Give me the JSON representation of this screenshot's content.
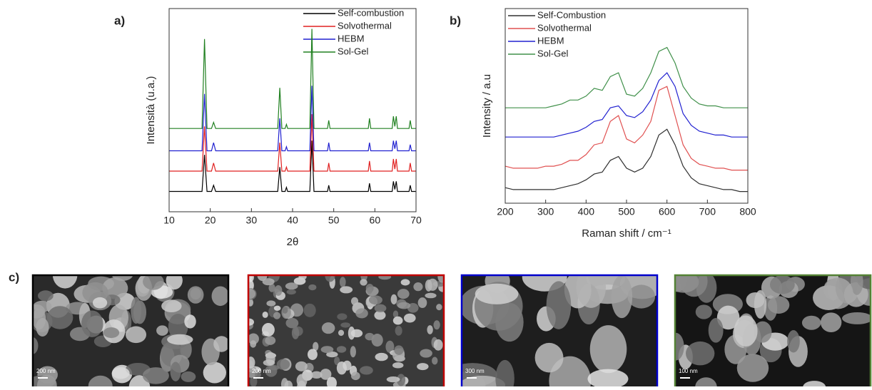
{
  "chart_data": [
    {
      "type": "line",
      "panel_label": "a)",
      "y_label": "Intensità (u.a.)",
      "x_label": "2θ",
      "x": [
        10,
        18.0,
        18.6,
        19.2,
        20.3,
        20.8,
        21.3,
        36.4,
        36.9,
        37.4,
        38.2,
        38.5,
        38.8,
        44.2,
        44.7,
        45.2,
        48.5,
        48.8,
        49.1,
        58.4,
        58.7,
        59.0,
        64.2,
        64.5,
        64.85,
        65.2,
        65.5,
        68.3,
        68.6,
        68.9,
        70
      ],
      "xlim": [
        10,
        70
      ],
      "xticks": [
        10,
        20,
        30,
        40,
        50,
        60,
        70
      ],
      "ylim": [
        0,
        100
      ],
      "series": [
        {
          "name": "Self-combustion",
          "color": "#000000",
          "values": [
            10,
            10,
            28,
            10,
            10,
            13,
            10,
            10,
            22,
            10,
            10,
            12,
            10,
            10,
            35,
            10,
            10,
            13,
            10,
            10,
            14,
            10,
            10,
            15,
            11,
            15,
            10,
            10,
            13,
            10,
            10
          ]
        },
        {
          "name": "Solvothermal",
          "color": "#e02020",
          "values": [
            20,
            20,
            42,
            20,
            20,
            24,
            20,
            20,
            34,
            20,
            20,
            22,
            20,
            20,
            48,
            20,
            20,
            24,
            20,
            20,
            25,
            20,
            20,
            26,
            21,
            26,
            20,
            20,
            24,
            20,
            20
          ]
        },
        {
          "name": "HEBM",
          "color": "#2020d0",
          "values": [
            30,
            30,
            58,
            30,
            30,
            34,
            30,
            30,
            46,
            30,
            30,
            32,
            30,
            30,
            62,
            30,
            30,
            34,
            30,
            30,
            34,
            30,
            30,
            35,
            31,
            35,
            30,
            30,
            33,
            30,
            30
          ]
        },
        {
          "name": "Sol-Gel",
          "color": "#208020",
          "values": [
            41,
            41,
            85,
            41,
            41,
            44,
            41,
            41,
            61,
            41,
            41,
            43,
            41,
            41,
            90,
            41,
            41,
            45,
            41,
            41,
            46,
            41,
            41,
            47,
            42,
            47,
            41,
            41,
            45,
            41,
            41
          ]
        }
      ]
    },
    {
      "type": "line",
      "panel_label": "b)",
      "y_label": "Intensity / a.u",
      "x_label": "Raman shift / cm⁻¹",
      "x": [
        200,
        220,
        240,
        260,
        280,
        300,
        320,
        340,
        360,
        380,
        400,
        420,
        440,
        460,
        480,
        500,
        520,
        540,
        560,
        580,
        600,
        620,
        640,
        660,
        680,
        700,
        720,
        740,
        760,
        780,
        800
      ],
      "xlim": [
        200,
        800
      ],
      "xticks": [
        200,
        300,
        400,
        500,
        600,
        700,
        800
      ],
      "ylim": [
        0,
        100
      ],
      "series": [
        {
          "name": "Self-Combustion",
          "color": "#303030",
          "values": [
            8,
            7,
            7,
            7,
            7,
            7,
            7,
            8,
            9,
            10,
            12,
            15,
            16,
            22,
            24,
            18,
            16,
            18,
            24,
            35,
            38,
            30,
            19,
            13,
            10,
            9,
            8,
            7,
            7,
            6,
            6
          ]
        },
        {
          "name": "Solvothermal",
          "color": "#e05050",
          "values": [
            19,
            18,
            18,
            18,
            18,
            19,
            19,
            20,
            22,
            22,
            25,
            30,
            31,
            42,
            45,
            33,
            31,
            35,
            42,
            58,
            60,
            45,
            30,
            23,
            20,
            19,
            18,
            18,
            17,
            17,
            17
          ]
        },
        {
          "name": "HEBM",
          "color": "#2020d0",
          "values": [
            34,
            34,
            34,
            34,
            34,
            34,
            34,
            35,
            36,
            37,
            39,
            42,
            43,
            49,
            50,
            45,
            44,
            47,
            53,
            63,
            67,
            60,
            46,
            40,
            37,
            36,
            35,
            35,
            34,
            34,
            34
          ]
        },
        {
          "name": "Sol-Gel",
          "color": "#40904a",
          "values": [
            49,
            49,
            49,
            49,
            49,
            49,
            50,
            51,
            53,
            53,
            55,
            59,
            58,
            65,
            67,
            56,
            55,
            59,
            67,
            78,
            80,
            72,
            60,
            54,
            51,
            50,
            50,
            49,
            49,
            49,
            49
          ]
        }
      ]
    }
  ],
  "sem": {
    "panel_label": "c)",
    "images": [
      {
        "scale_bar": "200 nm",
        "border_color": "#000000"
      },
      {
        "scale_bar": "200 nm",
        "border_color": "#c00000"
      },
      {
        "scale_bar": "300 nm",
        "border_color": "#0000cc"
      },
      {
        "scale_bar": "100 nm",
        "border_color": "#548235"
      }
    ]
  }
}
